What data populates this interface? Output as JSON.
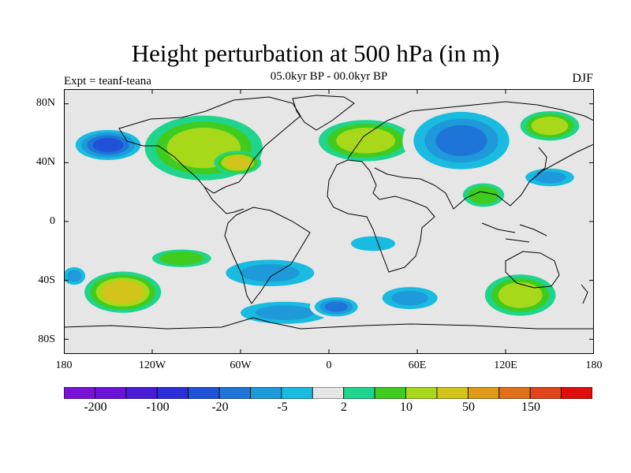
{
  "title": "Height perturbation at 500 hPa (in m)",
  "subtitle": "05.0kyr BP - 00.0kyr BP",
  "expt_label": "Expt = teanf-teana",
  "season": "DJF",
  "y_ticks": [
    "80N",
    "40N",
    "0",
    "40S",
    "80S"
  ],
  "x_ticks": [
    "180",
    "120W",
    "60W",
    "0",
    "60E",
    "120E",
    "180"
  ],
  "colorbar_labels": [
    "-200",
    "-100",
    "-20",
    "-5",
    "2",
    "10",
    "50",
    "150"
  ],
  "colors": {
    "neutral": "#e6e6e6",
    "levels": [
      "#7a12d6",
      "#6a12d8",
      "#4b1ad6",
      "#2b2ed8",
      "#1f52d6",
      "#1f74d8",
      "#1e99da",
      "#19bce0",
      "#e6e6e6",
      "#1fd48c",
      "#3fcc1f",
      "#a8d81a",
      "#d2c41a",
      "#e09a1a",
      "#e0701a",
      "#e0441a",
      "#e00d0d"
    ]
  },
  "chart_data": {
    "type": "heatmap",
    "projection": "cylindrical-equidistant",
    "title": "Height perturbation at 500 hPa (in m)",
    "subtitle": "05.0kyr BP - 00.0kyr BP",
    "xlim": [
      -180,
      180
    ],
    "ylim": [
      -90,
      90
    ],
    "contour_levels": [
      -200,
      -150,
      -100,
      -50,
      -20,
      -10,
      -5,
      -2,
      2,
      5,
      10,
      20,
      50,
      100,
      150,
      200
    ],
    "features": [
      {
        "lon": -150,
        "lat": 52,
        "value": -22,
        "rx": 26,
        "ry": 12
      },
      {
        "lon": -85,
        "lat": 50,
        "value": 14,
        "rx": 40,
        "ry": 22
      },
      {
        "lon": -62,
        "lat": 40,
        "value": 28,
        "rx": 16,
        "ry": 8
      },
      {
        "lon": 25,
        "lat": 55,
        "value": 14,
        "rx": 32,
        "ry": 14
      },
      {
        "lon": 90,
        "lat": 55,
        "value": -18,
        "rx": 40,
        "ry": 24
      },
      {
        "lon": 150,
        "lat": 65,
        "value": 14,
        "rx": 20,
        "ry": 10
      },
      {
        "lon": 150,
        "lat": 30,
        "value": -6,
        "rx": 22,
        "ry": 8
      },
      {
        "lon": 105,
        "lat": 18,
        "value": 8,
        "rx": 14,
        "ry": 8
      },
      {
        "lon": -140,
        "lat": -48,
        "value": 22,
        "rx": 26,
        "ry": 14
      },
      {
        "lon": -173,
        "lat": -37,
        "value": -8,
        "rx": 10,
        "ry": 8
      },
      {
        "lon": -40,
        "lat": -35,
        "value": -6,
        "rx": 40,
        "ry": 12
      },
      {
        "lon": -30,
        "lat": -62,
        "value": -9,
        "rx": 40,
        "ry": 10
      },
      {
        "lon": 5,
        "lat": -58,
        "value": -18,
        "rx": 18,
        "ry": 8
      },
      {
        "lon": 55,
        "lat": -52,
        "value": -8,
        "rx": 25,
        "ry": 10
      },
      {
        "lon": 130,
        "lat": -50,
        "value": 18,
        "rx": 24,
        "ry": 14
      },
      {
        "lon": 30,
        "lat": -15,
        "value": -4,
        "rx": 24,
        "ry": 8
      },
      {
        "lon": -100,
        "lat": -25,
        "value": 6,
        "rx": 20,
        "ry": 6
      }
    ]
  }
}
